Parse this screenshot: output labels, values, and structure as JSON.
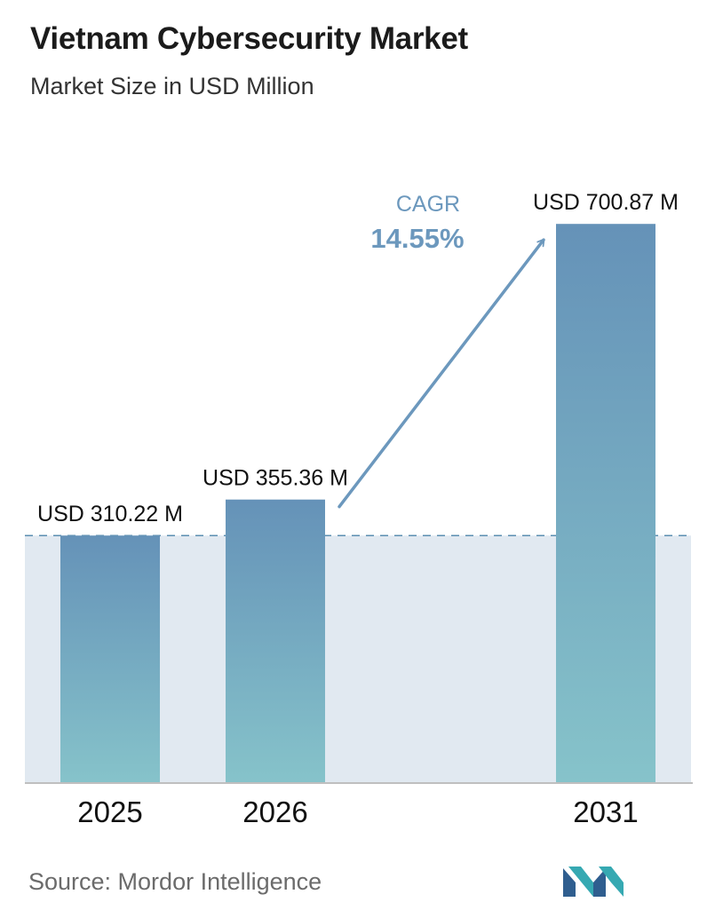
{
  "header": {
    "title": "Vietnam Cybersecurity Market",
    "subtitle": "Market Size in USD Million"
  },
  "cagr": {
    "label": "CAGR",
    "value": "14.55%"
  },
  "footer": {
    "source": "Source:  Mordor Intelligence",
    "logo_icon": "mordor-intelligence-logo-icon"
  },
  "colors": {
    "bar_top": "#6592b8",
    "bar_bottom": "#86c3ca",
    "band": "#e1e9f1",
    "arrow": "#6c98bd",
    "dashed_line": "#5b8fb1",
    "axis": "#bfbfbf"
  },
  "chart_data": {
    "type": "bar",
    "title": "Vietnam Cybersecurity Market",
    "subtitle": "Market Size in USD Million",
    "categories": [
      "2025",
      "2026",
      "2031"
    ],
    "values": [
      310.22,
      355.36,
      700.87
    ],
    "data_labels": [
      "USD 310.22 M",
      "USD 355.36 M",
      "USD 700.87 M"
    ],
    "ylim": [
      0,
      710
    ],
    "grid": false,
    "legend": "none",
    "annotations": [
      {
        "type": "arrow",
        "from": "2026",
        "to": "2031",
        "label": "CAGR 14.55%"
      },
      {
        "type": "dashed-reference-line",
        "value": 310.22
      }
    ]
  }
}
